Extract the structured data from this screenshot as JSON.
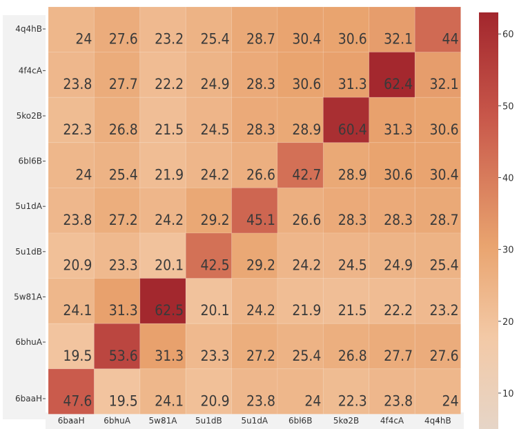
{
  "chart_data": {
    "type": "heatmap",
    "x_categories": [
      "6baaH",
      "6bhuA",
      "5w81A",
      "5u1dB",
      "5u1dA",
      "6bl6B",
      "5ko2B",
      "4f4cA",
      "4q4hB"
    ],
    "y_categories": [
      "4q4hB",
      "4f4cA",
      "5ko2B",
      "6bl6B",
      "5u1dA",
      "5u1dB",
      "5w81A",
      "6bhuA",
      "6baaH"
    ],
    "values": [
      [
        24,
        27.6,
        23.2,
        25.4,
        28.7,
        30.4,
        30.6,
        32.1,
        44
      ],
      [
        23.8,
        27.7,
        22.2,
        24.9,
        28.3,
        30.6,
        31.3,
        62.4,
        32.1
      ],
      [
        22.3,
        26.8,
        21.5,
        24.5,
        28.3,
        28.9,
        60.4,
        31.3,
        30.6
      ],
      [
        24,
        25.4,
        21.9,
        24.2,
        26.6,
        42.7,
        28.9,
        30.6,
        30.4
      ],
      [
        23.8,
        27.2,
        24.2,
        29.2,
        45.1,
        26.6,
        28.3,
        28.3,
        28.7
      ],
      [
        20.9,
        23.3,
        20.1,
        42.5,
        29.2,
        24.2,
        24.5,
        24.9,
        25.4
      ],
      [
        24.1,
        31.3,
        62.5,
        20.1,
        24.2,
        21.9,
        21.5,
        22.2,
        23.2
      ],
      [
        19.5,
        53.6,
        31.3,
        23.3,
        27.2,
        25.4,
        26.8,
        27.7,
        27.6
      ],
      [
        47.6,
        19.5,
        24.1,
        20.9,
        23.8,
        24,
        22.3,
        23.8,
        24
      ]
    ],
    "colorscale": {
      "min": 5,
      "max": 63,
      "ticks": [
        "10",
        "20",
        "30",
        "40",
        "50",
        "60"
      ]
    },
    "colors": {
      "low": "#e6d5c7",
      "mid_low": "#f3c9a6",
      "mid": "#e9a46f",
      "mid_high": "#c8574a",
      "high": "#a2262d",
      "text": "#3a3a3a"
    },
    "title": "",
    "xlabel": "",
    "ylabel": ""
  }
}
